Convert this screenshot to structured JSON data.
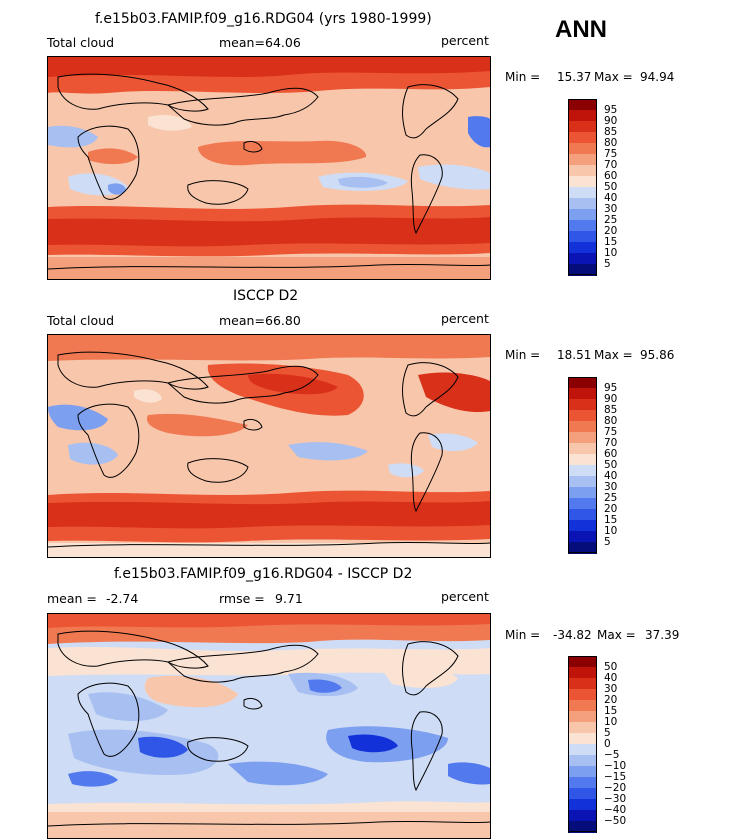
{
  "season": "ANN",
  "chart_data": [
    {
      "type": "heatmap",
      "title": "f.e15b03.FAMIP.f09_g16.RDG04 (yrs 1980-1999)",
      "variable_label": "Total cloud",
      "mean_label": "mean=",
      "mean_value": "64.06",
      "units": "percent",
      "min_label": "Min =",
      "min_value": "15.37",
      "max_label": "Max =",
      "max_value": "94.94",
      "colorbar_levels": [
        "95",
        "90",
        "85",
        "80",
        "75",
        "70",
        "60",
        "50",
        "40",
        "30",
        "25",
        "20",
        "15",
        "10",
        "5"
      ],
      "colorbar_colors": [
        "#8b0000",
        "#c0140b",
        "#d93119",
        "#ec5534",
        "#f07952",
        "#f4a07c",
        "#f8c6ab",
        "#fbe3d3",
        "#cfdcf5",
        "#a7bff1",
        "#7d9ff0",
        "#5279ee",
        "#2f56e6",
        "#1231d8",
        "#0a14b4",
        "#050d7a"
      ]
    },
    {
      "type": "heatmap",
      "title": "ISCCP D2",
      "variable_label": "Total cloud",
      "mean_label": "mean=",
      "mean_value": "66.80",
      "units": "percent",
      "min_label": "Min =",
      "min_value": "18.51",
      "max_label": "Max =",
      "max_value": "95.86",
      "colorbar_levels": [
        "95",
        "90",
        "85",
        "80",
        "75",
        "70",
        "60",
        "50",
        "40",
        "30",
        "25",
        "20",
        "15",
        "10",
        "5"
      ],
      "colorbar_colors": [
        "#8b0000",
        "#c0140b",
        "#d93119",
        "#ec5534",
        "#f07952",
        "#f4a07c",
        "#f8c6ab",
        "#fbe3d3",
        "#cfdcf5",
        "#a7bff1",
        "#7d9ff0",
        "#5279ee",
        "#2f56e6",
        "#1231d8",
        "#0a14b4",
        "#050d7a"
      ]
    },
    {
      "type": "heatmap",
      "title": "f.e15b03.FAMIP.f09_g16.RDG04 - ISCCP D2",
      "mean_label": "mean =",
      "mean_value": "-2.74",
      "rmse_label": "rmse =",
      "rmse_value": "9.71",
      "units": "percent",
      "min_label": "Min =",
      "min_value": "-34.82",
      "max_label": "Max =",
      "max_value": "37.39",
      "colorbar_levels": [
        "50",
        "40",
        "30",
        "20",
        "15",
        "10",
        "5",
        "0",
        "-5",
        "-10",
        "-15",
        "-20",
        "-30",
        "-40",
        "-50"
      ],
      "colorbar_colors": [
        "#8b0000",
        "#c0140b",
        "#d93119",
        "#ec5534",
        "#f07952",
        "#f4a07c",
        "#f8c6ab",
        "#fbe3d3",
        "#cfdcf5",
        "#a7bff1",
        "#7d9ff0",
        "#5279ee",
        "#2f56e6",
        "#1231d8",
        "#0a14b4",
        "#050d7a"
      ]
    }
  ]
}
